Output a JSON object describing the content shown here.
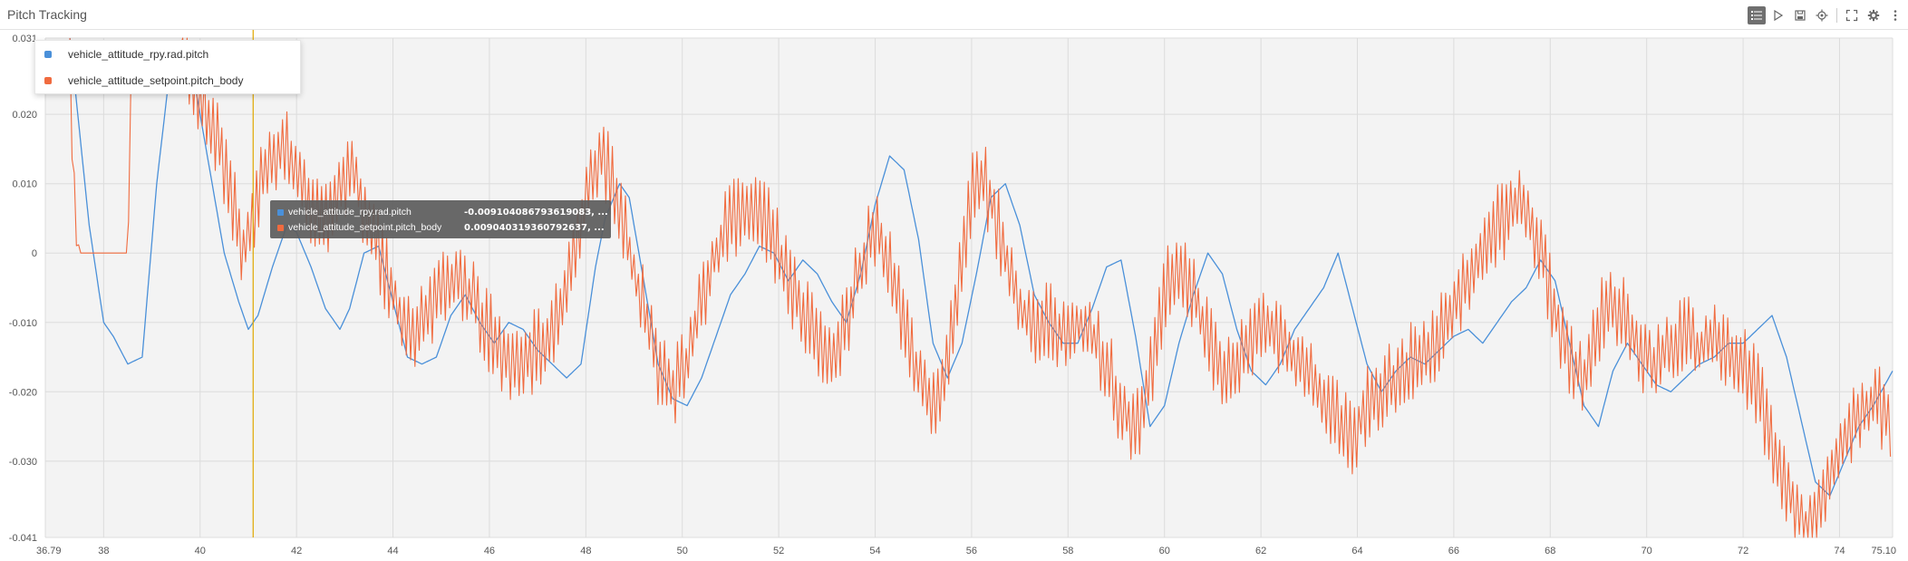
{
  "panel": {
    "title": "Pitch Tracking"
  },
  "toolbar": {
    "buttons": [
      {
        "name": "legend-toggle-icon",
        "active": true
      },
      {
        "name": "play-icon",
        "active": false
      },
      {
        "name": "save-icon",
        "active": false
      },
      {
        "name": "crosshair-icon",
        "active": false
      },
      {
        "name": "fullscreen-icon",
        "active": false
      },
      {
        "name": "settings-gear-icon",
        "active": false
      },
      {
        "name": "more-vertical-icon",
        "active": false
      }
    ]
  },
  "legend": {
    "items": [
      {
        "label": "vehicle_attitude_rpy.rad.pitch",
        "color": "#4a90d9"
      },
      {
        "label": "vehicle_attitude_setpoint.pitch_body",
        "color": "#f06b3f"
      }
    ]
  },
  "tooltip": {
    "rows": [
      {
        "label": "vehicle_attitude_rpy.rad.pitch",
        "value": "-0.009104086793619083, ...",
        "color": "#4a90d9"
      },
      {
        "label": "vehicle_attitude_setpoint.pitch_body",
        "value": "0.009040319360792637, ...",
        "color": "#f06b3f"
      }
    ]
  },
  "colors": {
    "plot_background": "#f3f3f3",
    "grid": "#dcdcdc",
    "cursor": "#e0a800",
    "series_pitch": "#4a90d9",
    "series_setpoint": "#f06b3f"
  },
  "chart_data": {
    "type": "line",
    "xlabel": "",
    "ylabel": "",
    "xlim": [
      36.79,
      75.1
    ],
    "ylim": [
      -0.041,
      0.031
    ],
    "x_ticks": [
      "36.79",
      "38",
      "40",
      "42",
      "44",
      "46",
      "48",
      "50",
      "52",
      "54",
      "56",
      "58",
      "60",
      "62",
      "64",
      "66",
      "68",
      "70",
      "72",
      "74",
      "75.10"
    ],
    "y_ticks": [
      "0.031",
      "0.020",
      "0.010",
      "0",
      "-0.010",
      "-0.020",
      "-0.030",
      "-0.041"
    ],
    "grid": true,
    "legend_position": "top-left",
    "cursor_x": 41.1,
    "series": [
      {
        "name": "vehicle_attitude_rpy.rad.pitch",
        "color": "#4a90d9",
        "points": [
          [
            37.3,
            0.031
          ],
          [
            37.7,
            0.004
          ],
          [
            38.0,
            -0.01
          ],
          [
            38.2,
            -0.012
          ],
          [
            38.5,
            -0.016
          ],
          [
            38.8,
            -0.015
          ],
          [
            39.1,
            0.01
          ],
          [
            39.4,
            0.028
          ],
          [
            39.8,
            0.028
          ],
          [
            40.2,
            0.012
          ],
          [
            40.5,
            0.0
          ],
          [
            40.8,
            -0.007
          ],
          [
            41.0,
            -0.011
          ],
          [
            41.2,
            -0.009
          ],
          [
            41.5,
            -0.002
          ],
          [
            41.8,
            0.004
          ],
          [
            42.0,
            0.003
          ],
          [
            42.3,
            -0.002
          ],
          [
            42.6,
            -0.008
          ],
          [
            42.9,
            -0.011
          ],
          [
            43.1,
            -0.008
          ],
          [
            43.4,
            0.0
          ],
          [
            43.7,
            0.001
          ],
          [
            44.0,
            -0.007
          ],
          [
            44.3,
            -0.015
          ],
          [
            44.6,
            -0.016
          ],
          [
            44.9,
            -0.015
          ],
          [
            45.2,
            -0.009
          ],
          [
            45.5,
            -0.006
          ],
          [
            45.8,
            -0.01
          ],
          [
            46.1,
            -0.013
          ],
          [
            46.4,
            -0.01
          ],
          [
            46.7,
            -0.011
          ],
          [
            47.0,
            -0.014
          ],
          [
            47.3,
            -0.016
          ],
          [
            47.6,
            -0.018
          ],
          [
            47.9,
            -0.016
          ],
          [
            48.2,
            -0.002
          ],
          [
            48.4,
            0.005
          ],
          [
            48.7,
            0.01
          ],
          [
            48.9,
            0.008
          ],
          [
            49.2,
            -0.004
          ],
          [
            49.5,
            -0.016
          ],
          [
            49.8,
            -0.021
          ],
          [
            50.1,
            -0.022
          ],
          [
            50.4,
            -0.018
          ],
          [
            50.7,
            -0.012
          ],
          [
            51.0,
            -0.006
          ],
          [
            51.3,
            -0.003
          ],
          [
            51.6,
            0.001
          ],
          [
            51.9,
            0.0
          ],
          [
            52.2,
            -0.004
          ],
          [
            52.5,
            -0.001
          ],
          [
            52.8,
            -0.003
          ],
          [
            53.1,
            -0.007
          ],
          [
            53.4,
            -0.01
          ],
          [
            53.7,
            -0.003
          ],
          [
            54.0,
            0.007
          ],
          [
            54.3,
            0.014
          ],
          [
            54.6,
            0.012
          ],
          [
            54.9,
            0.002
          ],
          [
            55.2,
            -0.013
          ],
          [
            55.5,
            -0.018
          ],
          [
            55.8,
            -0.013
          ],
          [
            56.1,
            -0.003
          ],
          [
            56.4,
            0.008
          ],
          [
            56.7,
            0.01
          ],
          [
            57.0,
            0.004
          ],
          [
            57.3,
            -0.006
          ],
          [
            57.6,
            -0.01
          ],
          [
            57.9,
            -0.013
          ],
          [
            58.2,
            -0.013
          ],
          [
            58.5,
            -0.008
          ],
          [
            58.8,
            -0.002
          ],
          [
            59.1,
            -0.001
          ],
          [
            59.4,
            -0.012
          ],
          [
            59.7,
            -0.025
          ],
          [
            60.0,
            -0.022
          ],
          [
            60.3,
            -0.013
          ],
          [
            60.6,
            -0.006
          ],
          [
            60.9,
            0.0
          ],
          [
            61.2,
            -0.003
          ],
          [
            61.5,
            -0.011
          ],
          [
            61.8,
            -0.017
          ],
          [
            62.1,
            -0.019
          ],
          [
            62.4,
            -0.016
          ],
          [
            62.7,
            -0.011
          ],
          [
            63.0,
            -0.008
          ],
          [
            63.3,
            -0.005
          ],
          [
            63.6,
            0.0
          ],
          [
            63.9,
            -0.008
          ],
          [
            64.2,
            -0.016
          ],
          [
            64.5,
            -0.02
          ],
          [
            64.8,
            -0.017
          ],
          [
            65.1,
            -0.015
          ],
          [
            65.4,
            -0.016
          ],
          [
            65.7,
            -0.014
          ],
          [
            66.0,
            -0.012
          ],
          [
            66.3,
            -0.011
          ],
          [
            66.6,
            -0.013
          ],
          [
            66.9,
            -0.01
          ],
          [
            67.2,
            -0.007
          ],
          [
            67.5,
            -0.005
          ],
          [
            67.8,
            -0.001
          ],
          [
            68.1,
            -0.004
          ],
          [
            68.4,
            -0.013
          ],
          [
            68.7,
            -0.022
          ],
          [
            69.0,
            -0.025
          ],
          [
            69.3,
            -0.017
          ],
          [
            69.6,
            -0.013
          ],
          [
            69.9,
            -0.016
          ],
          [
            70.2,
            -0.019
          ],
          [
            70.5,
            -0.02
          ],
          [
            70.8,
            -0.018
          ],
          [
            71.1,
            -0.016
          ],
          [
            71.4,
            -0.015
          ],
          [
            71.7,
            -0.013
          ],
          [
            72.0,
            -0.013
          ],
          [
            72.3,
            -0.011
          ],
          [
            72.6,
            -0.009
          ],
          [
            72.9,
            -0.015
          ],
          [
            73.2,
            -0.024
          ],
          [
            73.5,
            -0.033
          ],
          [
            73.8,
            -0.035
          ],
          [
            74.1,
            -0.03
          ],
          [
            74.4,
            -0.025
          ],
          [
            74.7,
            -0.022
          ],
          [
            75.1,
            -0.017
          ]
        ]
      },
      {
        "name": "vehicle_attitude_setpoint.pitch_body",
        "color": "#f06b3f",
        "points": [
          [
            37.3,
            0.03
          ],
          [
            37.4,
            0.006
          ],
          [
            37.5,
            0.0
          ],
          [
            38.3,
            0.0
          ],
          [
            38.5,
            0.0
          ],
          [
            38.6,
            0.03
          ],
          [
            39.6,
            0.03
          ],
          [
            39.9,
            0.024
          ],
          [
            40.3,
            0.018
          ],
          [
            40.6,
            0.01
          ],
          [
            40.9,
            0.0
          ],
          [
            41.1,
            0.006
          ],
          [
            41.4,
            0.013
          ],
          [
            41.7,
            0.016
          ],
          [
            42.0,
            0.012
          ],
          [
            42.3,
            0.007
          ],
          [
            42.6,
            0.005
          ],
          [
            42.9,
            0.01
          ],
          [
            43.2,
            0.011
          ],
          [
            43.5,
            0.005
          ],
          [
            43.8,
            -0.002
          ],
          [
            44.1,
            -0.008
          ],
          [
            44.4,
            -0.011
          ],
          [
            44.7,
            -0.01
          ],
          [
            45.0,
            -0.006
          ],
          [
            45.3,
            -0.004
          ],
          [
            45.6,
            -0.006
          ],
          [
            45.9,
            -0.01
          ],
          [
            46.2,
            -0.014
          ],
          [
            46.5,
            -0.016
          ],
          [
            46.8,
            -0.015
          ],
          [
            47.1,
            -0.013
          ],
          [
            47.4,
            -0.01
          ],
          [
            47.7,
            -0.001
          ],
          [
            48.0,
            0.008
          ],
          [
            48.3,
            0.014
          ],
          [
            48.6,
            0.01
          ],
          [
            48.9,
            0.0
          ],
          [
            49.2,
            -0.008
          ],
          [
            49.5,
            -0.016
          ],
          [
            49.8,
            -0.02
          ],
          [
            50.1,
            -0.016
          ],
          [
            50.4,
            -0.006
          ],
          [
            50.7,
            0.0
          ],
          [
            51.0,
            0.005
          ],
          [
            51.3,
            0.006
          ],
          [
            51.6,
            0.006
          ],
          [
            51.9,
            0.002
          ],
          [
            52.2,
            -0.004
          ],
          [
            52.5,
            -0.008
          ],
          [
            52.8,
            -0.012
          ],
          [
            53.1,
            -0.015
          ],
          [
            53.4,
            -0.01
          ],
          [
            53.7,
            -0.002
          ],
          [
            54.0,
            0.004
          ],
          [
            54.3,
            -0.001
          ],
          [
            54.6,
            -0.01
          ],
          [
            54.9,
            -0.018
          ],
          [
            55.2,
            -0.022
          ],
          [
            55.5,
            -0.015
          ],
          [
            55.8,
            0.0
          ],
          [
            56.1,
            0.012
          ],
          [
            56.4,
            0.008
          ],
          [
            56.7,
            0.0
          ],
          [
            57.0,
            -0.008
          ],
          [
            57.3,
            -0.011
          ],
          [
            57.6,
            -0.01
          ],
          [
            57.9,
            -0.012
          ],
          [
            58.2,
            -0.01
          ],
          [
            58.5,
            -0.012
          ],
          [
            58.8,
            -0.016
          ],
          [
            59.1,
            -0.022
          ],
          [
            59.4,
            -0.026
          ],
          [
            59.7,
            -0.018
          ],
          [
            60.0,
            -0.006
          ],
          [
            60.3,
            -0.001
          ],
          [
            60.6,
            -0.006
          ],
          [
            60.9,
            -0.012
          ],
          [
            61.2,
            -0.018
          ],
          [
            61.5,
            -0.016
          ],
          [
            61.8,
            -0.012
          ],
          [
            62.1,
            -0.01
          ],
          [
            62.4,
            -0.012
          ],
          [
            62.7,
            -0.015
          ],
          [
            63.0,
            -0.018
          ],
          [
            63.3,
            -0.021
          ],
          [
            63.6,
            -0.024
          ],
          [
            63.9,
            -0.026
          ],
          [
            64.2,
            -0.022
          ],
          [
            64.5,
            -0.02
          ],
          [
            64.8,
            -0.018
          ],
          [
            65.1,
            -0.016
          ],
          [
            65.4,
            -0.014
          ],
          [
            65.7,
            -0.012
          ],
          [
            66.0,
            -0.008
          ],
          [
            66.3,
            -0.004
          ],
          [
            66.6,
            0.0
          ],
          [
            66.9,
            0.004
          ],
          [
            67.2,
            0.006
          ],
          [
            67.5,
            0.007
          ],
          [
            67.8,
            0.0
          ],
          [
            68.1,
            -0.008
          ],
          [
            68.4,
            -0.015
          ],
          [
            68.7,
            -0.018
          ],
          [
            69.0,
            -0.01
          ],
          [
            69.3,
            -0.008
          ],
          [
            69.6,
            -0.01
          ],
          [
            69.9,
            -0.014
          ],
          [
            70.2,
            -0.016
          ],
          [
            70.5,
            -0.013
          ],
          [
            70.8,
            -0.011
          ],
          [
            71.1,
            -0.014
          ],
          [
            71.4,
            -0.012
          ],
          [
            71.7,
            -0.015
          ],
          [
            72.0,
            -0.016
          ],
          [
            72.3,
            -0.02
          ],
          [
            72.6,
            -0.027
          ],
          [
            72.9,
            -0.034
          ],
          [
            73.2,
            -0.039
          ],
          [
            73.5,
            -0.04
          ],
          [
            73.8,
            -0.033
          ],
          [
            74.1,
            -0.026
          ],
          [
            74.4,
            -0.024
          ],
          [
            74.7,
            -0.021
          ],
          [
            75.1,
            -0.025
          ]
        ]
      }
    ]
  }
}
